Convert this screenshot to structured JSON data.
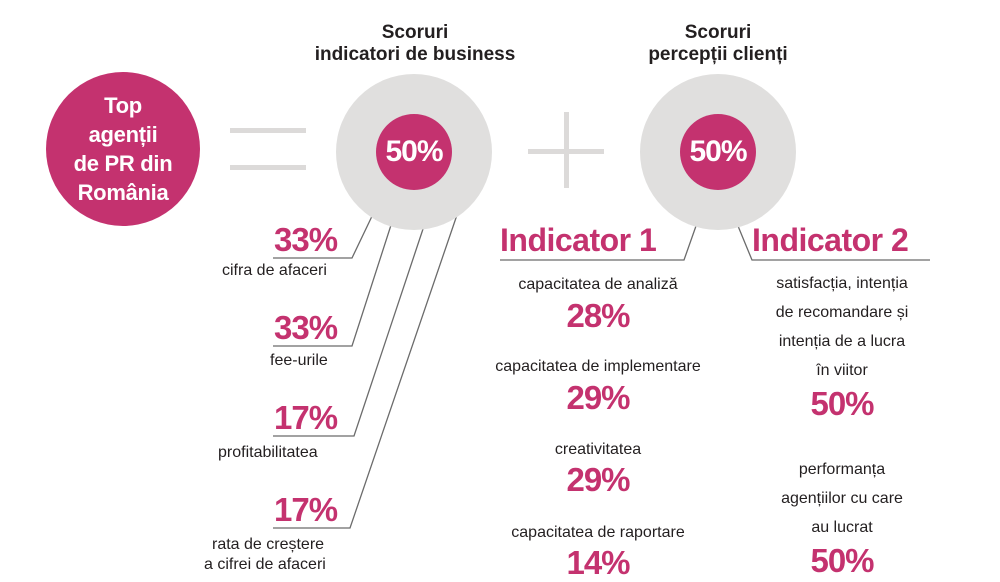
{
  "headings": {
    "business": [
      "Scoruri",
      "indicatori de business"
    ],
    "clients": [
      "Scoruri",
      "percepții clienți"
    ]
  },
  "title": [
    "Top",
    "agenții",
    "de PR din",
    "România"
  ],
  "business_share": "50%",
  "clients_share": "50%",
  "business_items": [
    {
      "value": "33%",
      "label": "cifra de afaceri"
    },
    {
      "value": "33%",
      "label": "fee-urile"
    },
    {
      "value": "17%",
      "label": "profitabilitatea"
    },
    {
      "value": "17%",
      "label": [
        "rata de creștere",
        "a cifrei de afaceri"
      ]
    }
  ],
  "indicator1": {
    "title": "Indicator 1",
    "items": [
      {
        "label": "capacitatea de analiză",
        "value": "28%"
      },
      {
        "label": "capacitatea de implementare",
        "value": "29%"
      },
      {
        "label": "creativitatea",
        "value": "29%"
      },
      {
        "label": "capacitatea de raportare",
        "value": "14%"
      }
    ]
  },
  "indicator2": {
    "title": "Indicator 2",
    "items": [
      {
        "label": [
          "satisfacția, intenția",
          "de recomandare și",
          "intenția de a lucra",
          "în viitor"
        ],
        "value": "50%"
      },
      {
        "label": [
          "performanța",
          "agențiilor cu care",
          "au lucrat"
        ],
        "value": "50%"
      }
    ]
  },
  "colors": {
    "accent": "#c4326f",
    "circle_gray": "#e0dfde",
    "line": "#666666"
  }
}
